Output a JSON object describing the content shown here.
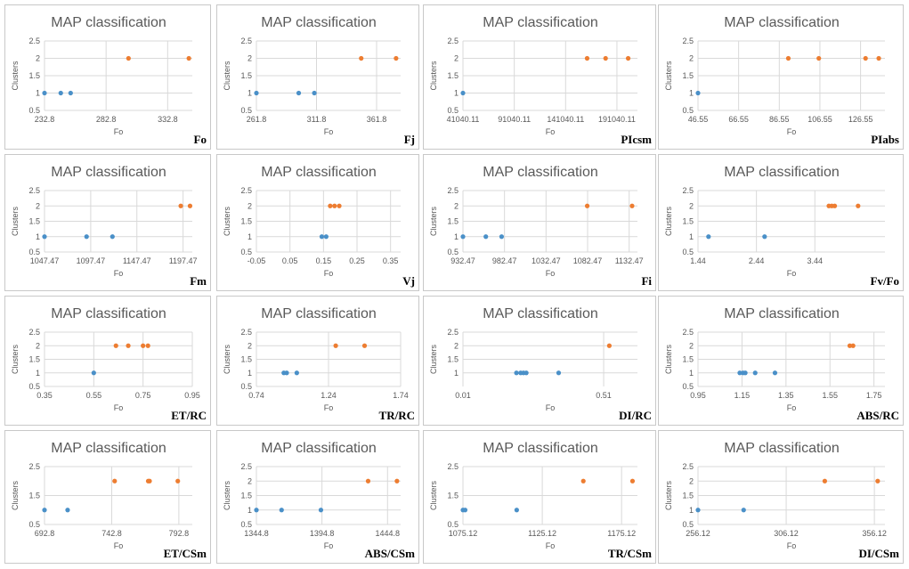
{
  "colors": {
    "cluster1": "#4a90c8",
    "cluster2": "#ed7d31",
    "grid": "#d9d9d9",
    "axis": "#595959"
  },
  "chart_data": [
    {
      "type": "scatter",
      "title": "MAP classification",
      "tag": "Fo",
      "xlabel": "Fo",
      "ylabel": "Clusters",
      "xticks": [
        "232.8",
        "282.8",
        "332.8"
      ],
      "xlim": [
        232.8,
        352.8
      ],
      "ylim": [
        0.5,
        2.5
      ],
      "yticks": [
        "0.5",
        "1",
        "1.5",
        "2",
        "2.5"
      ],
      "points": [
        {
          "x": 232.8,
          "y": 1,
          "c": 1
        },
        {
          "x": 246,
          "y": 1,
          "c": 1
        },
        {
          "x": 254,
          "y": 1,
          "c": 1
        },
        {
          "x": 301,
          "y": 2,
          "c": 2
        },
        {
          "x": 350,
          "y": 2,
          "c": 2
        }
      ]
    },
    {
      "type": "scatter",
      "title": "MAP classification",
      "tag": "Fj",
      "xlabel": "Fo",
      "ylabel": "Clusters",
      "xticks": [
        "261.8",
        "311.8",
        "361.8"
      ],
      "xlim": [
        261.8,
        381.8
      ],
      "ylim": [
        0.5,
        2.5
      ],
      "yticks": [
        "0.5",
        "1",
        "1.5",
        "2",
        "2.5"
      ],
      "points": [
        {
          "x": 261.8,
          "y": 1,
          "c": 1
        },
        {
          "x": 297,
          "y": 1,
          "c": 1
        },
        {
          "x": 310,
          "y": 1,
          "c": 1
        },
        {
          "x": 349,
          "y": 2,
          "c": 2
        },
        {
          "x": 378,
          "y": 2,
          "c": 2
        }
      ]
    },
    {
      "type": "scatter",
      "title": "MAP classification",
      "tag": "PIcsm",
      "xlabel": "Fo",
      "ylabel": "Clusters",
      "xticks": [
        "41040.11",
        "91040.11",
        "141040.11",
        "191040.11"
      ],
      "xlim": [
        41040.11,
        211040.11
      ],
      "ylim": [
        0.5,
        2.5
      ],
      "yticks": [
        "0.5",
        "1",
        "1.5",
        "2",
        "2.5"
      ],
      "points": [
        {
          "x": 41040,
          "y": 1,
          "c": 1
        },
        {
          "x": 162000,
          "y": 2,
          "c": 2
        },
        {
          "x": 180000,
          "y": 2,
          "c": 2
        },
        {
          "x": 202000,
          "y": 2,
          "c": 2
        }
      ]
    },
    {
      "type": "scatter",
      "title": "MAP classification",
      "tag": "PIabs",
      "xlabel": "Fo",
      "ylabel": "Clusters",
      "xticks": [
        "46.55",
        "66.55",
        "86.55",
        "106.55",
        "126.55"
      ],
      "xlim": [
        46.55,
        138.55
      ],
      "ylim": [
        0.5,
        2.5
      ],
      "yticks": [
        "0.5",
        "1",
        "1.5",
        "2",
        "2.5"
      ],
      "points": [
        {
          "x": 46.55,
          "y": 1,
          "c": 1
        },
        {
          "x": 91,
          "y": 2,
          "c": 2
        },
        {
          "x": 106,
          "y": 2,
          "c": 2
        },
        {
          "x": 129,
          "y": 2,
          "c": 2
        },
        {
          "x": 135.5,
          "y": 2,
          "c": 2
        }
      ]
    },
    {
      "type": "scatter",
      "title": "MAP classification",
      "tag": "Fm",
      "xlabel": "Fo",
      "ylabel": "Clusters",
      "xticks": [
        "1047.47",
        "1097.47",
        "1147.47",
        "1197.47"
      ],
      "xlim": [
        1047.47,
        1207.47
      ],
      "ylim": [
        0.5,
        2.5
      ],
      "yticks": [
        "0.5",
        "1",
        "1.5",
        "2",
        "2.5"
      ],
      "points": [
        {
          "x": 1047.47,
          "y": 1,
          "c": 1
        },
        {
          "x": 1093,
          "y": 1,
          "c": 1
        },
        {
          "x": 1121,
          "y": 1,
          "c": 1
        },
        {
          "x": 1195,
          "y": 2,
          "c": 2
        },
        {
          "x": 1205,
          "y": 2,
          "c": 2
        }
      ]
    },
    {
      "type": "scatter",
      "title": "MAP classification",
      "tag": "Vj",
      "xlabel": "Fo",
      "ylabel": "Clusters",
      "xticks": [
        "-0.05",
        "0.05",
        "0.15",
        "0.25",
        "0.35"
      ],
      "xlim": [
        -0.05,
        0.38
      ],
      "ylim": [
        0.5,
        2.5
      ],
      "yticks": [
        "0.5",
        "1",
        "1.5",
        "2",
        "2.5"
      ],
      "points": [
        {
          "x": 0.145,
          "y": 1,
          "c": 1
        },
        {
          "x": 0.158,
          "y": 1,
          "c": 1
        },
        {
          "x": 0.17,
          "y": 2,
          "c": 2
        },
        {
          "x": 0.183,
          "y": 2,
          "c": 2
        },
        {
          "x": 0.197,
          "y": 2,
          "c": 2
        }
      ]
    },
    {
      "type": "scatter",
      "title": "MAP classification",
      "tag": "Fi",
      "xlabel": "Fo",
      "ylabel": "Clusters",
      "xticks": [
        "932.47",
        "982.47",
        "1032.47",
        "1082.47",
        "1132.47"
      ],
      "xlim": [
        932.47,
        1142.47
      ],
      "ylim": [
        0.5,
        2.5
      ],
      "yticks": [
        "0.5",
        "1",
        "1.5",
        "2",
        "2.5"
      ],
      "points": [
        {
          "x": 932.47,
          "y": 1,
          "c": 1
        },
        {
          "x": 960,
          "y": 1,
          "c": 1
        },
        {
          "x": 979,
          "y": 1,
          "c": 1
        },
        {
          "x": 1082,
          "y": 2,
          "c": 2
        },
        {
          "x": 1136,
          "y": 2,
          "c": 2
        }
      ]
    },
    {
      "type": "scatter",
      "title": "MAP classification",
      "tag": "Fv/Fo",
      "xlabel": "Fo",
      "ylabel": "Clusters",
      "xticks": [
        "1.44",
        "2.44",
        "3.44"
      ],
      "xlim": [
        1.44,
        4.64
      ],
      "ylim": [
        0.5,
        2.5
      ],
      "yticks": [
        "0.5",
        "1",
        "1.5",
        "2",
        "2.5"
      ],
      "points": [
        {
          "x": 1.62,
          "y": 1,
          "c": 1
        },
        {
          "x": 2.58,
          "y": 1,
          "c": 1
        },
        {
          "x": 3.68,
          "y": 2,
          "c": 2
        },
        {
          "x": 3.73,
          "y": 2,
          "c": 2
        },
        {
          "x": 3.78,
          "y": 2,
          "c": 2
        },
        {
          "x": 4.18,
          "y": 2,
          "c": 2
        }
      ]
    },
    {
      "type": "scatter",
      "title": "MAP classification",
      "tag": "ET/RC",
      "xlabel": "Fo",
      "ylabel": "Clusters",
      "xticks": [
        "0.35",
        "0.55",
        "0.75",
        "0.95"
      ],
      "xlim": [
        0.35,
        0.95
      ],
      "ylim": [
        0.5,
        2.5
      ],
      "yticks": [
        "0.5",
        "1",
        "1.5",
        "2",
        "2.5"
      ],
      "points": [
        {
          "x": 0.55,
          "y": 1,
          "c": 1
        },
        {
          "x": 0.64,
          "y": 2,
          "c": 2
        },
        {
          "x": 0.69,
          "y": 2,
          "c": 2
        },
        {
          "x": 0.75,
          "y": 2,
          "c": 2
        },
        {
          "x": 0.77,
          "y": 2,
          "c": 2
        }
      ]
    },
    {
      "type": "scatter",
      "title": "MAP classification",
      "tag": "TR/RC",
      "xlabel": "Fo",
      "ylabel": "Clusters",
      "xticks": [
        "0.74",
        "1.24",
        "1.74"
      ],
      "xlim": [
        0.74,
        1.74
      ],
      "ylim": [
        0.5,
        2.5
      ],
      "yticks": [
        "0.5",
        "1",
        "1.5",
        "2",
        "2.5"
      ],
      "points": [
        {
          "x": 0.93,
          "y": 1,
          "c": 1
        },
        {
          "x": 0.95,
          "y": 1,
          "c": 1
        },
        {
          "x": 1.02,
          "y": 1,
          "c": 1
        },
        {
          "x": 1.29,
          "y": 2,
          "c": 2
        },
        {
          "x": 1.49,
          "y": 2,
          "c": 2
        }
      ]
    },
    {
      "type": "scatter",
      "title": "MAP classification",
      "tag": "DI/RC",
      "xlabel": "Fo",
      "ylabel": "Clusters",
      "xticks": [
        "0.01",
        "0.51"
      ],
      "xlim": [
        0.01,
        0.63
      ],
      "ylim": [
        0.5,
        2.5
      ],
      "yticks": [
        "1",
        "1.5",
        "2",
        "2.5"
      ],
      "points": [
        {
          "x": 0.2,
          "y": 1,
          "c": 1
        },
        {
          "x": 0.215,
          "y": 1,
          "c": 1
        },
        {
          "x": 0.225,
          "y": 1,
          "c": 1
        },
        {
          "x": 0.235,
          "y": 1,
          "c": 1
        },
        {
          "x": 0.35,
          "y": 1,
          "c": 1
        },
        {
          "x": 0.53,
          "y": 2,
          "c": 2
        }
      ]
    },
    {
      "type": "scatter",
      "title": "MAP classification",
      "tag": "ABS/RC",
      "xlabel": "Fo",
      "ylabel": "Clusters",
      "xticks": [
        "0.95",
        "1.15",
        "1.35",
        "1.55",
        "1.75"
      ],
      "xlim": [
        0.95,
        1.8
      ],
      "ylim": [
        0.5,
        2.5
      ],
      "yticks": [
        "0.5",
        "1",
        "1.5",
        "2",
        "2.5"
      ],
      "points": [
        {
          "x": 1.14,
          "y": 1,
          "c": 1
        },
        {
          "x": 1.155,
          "y": 1,
          "c": 1
        },
        {
          "x": 1.165,
          "y": 1,
          "c": 1
        },
        {
          "x": 1.21,
          "y": 1,
          "c": 1
        },
        {
          "x": 1.3,
          "y": 1,
          "c": 1
        },
        {
          "x": 1.64,
          "y": 2,
          "c": 2
        },
        {
          "x": 1.655,
          "y": 2,
          "c": 2
        }
      ]
    },
    {
      "type": "scatter",
      "title": "MAP classification",
      "tag": "ET/CSm",
      "xlabel": "Fo",
      "ylabel": "Clusters",
      "xticks": [
        "692.8",
        "742.8",
        "792.8"
      ],
      "xlim": [
        692.8,
        802.8
      ],
      "ylim": [
        0.5,
        2.5
      ],
      "yticks": [
        "0.5",
        "1.5",
        "2.5"
      ],
      "points": [
        {
          "x": 692.8,
          "y": 1,
          "c": 1
        },
        {
          "x": 710,
          "y": 1,
          "c": 1
        },
        {
          "x": 745,
          "y": 2,
          "c": 2
        },
        {
          "x": 770,
          "y": 2,
          "c": 2
        },
        {
          "x": 771,
          "y": 2,
          "c": 2
        },
        {
          "x": 792,
          "y": 2,
          "c": 2
        }
      ]
    },
    {
      "type": "scatter",
      "title": "MAP classification",
      "tag": "ABS/CSm",
      "xlabel": "Fo",
      "ylabel": "Clusters",
      "xticks": [
        "1344.8",
        "1394.8",
        "1444.8"
      ],
      "xlim": [
        1344.8,
        1454.8
      ],
      "ylim": [
        0.5,
        2.5
      ],
      "yticks": [
        "0.5",
        "1",
        "1.5",
        "2",
        "2.5"
      ],
      "points": [
        {
          "x": 1344.8,
          "y": 1,
          "c": 1
        },
        {
          "x": 1364,
          "y": 1,
          "c": 1
        },
        {
          "x": 1394,
          "y": 1,
          "c": 1
        },
        {
          "x": 1430,
          "y": 2,
          "c": 2
        },
        {
          "x": 1452,
          "y": 2,
          "c": 2
        }
      ]
    },
    {
      "type": "scatter",
      "title": "MAP classification",
      "tag": "TR/CSm",
      "xlabel": "Fo",
      "ylabel": "Clusters",
      "xticks": [
        "1075.12",
        "1125.12",
        "1175.12"
      ],
      "xlim": [
        1075.12,
        1185.12
      ],
      "ylim": [
        0.5,
        2.5
      ],
      "yticks": [
        "0.5",
        "1.5",
        "2.5"
      ],
      "points": [
        {
          "x": 1075.12,
          "y": 1,
          "c": 1
        },
        {
          "x": 1076.5,
          "y": 1,
          "c": 1
        },
        {
          "x": 1109,
          "y": 1,
          "c": 1
        },
        {
          "x": 1151,
          "y": 2,
          "c": 2
        },
        {
          "x": 1182,
          "y": 2,
          "c": 2
        }
      ]
    },
    {
      "type": "scatter",
      "title": "MAP classification",
      "tag": "DI/CSm",
      "xlabel": "Fo",
      "ylabel": "Clusters",
      "xticks": [
        "256.12",
        "306.12",
        "356.12"
      ],
      "xlim": [
        256.12,
        362.12
      ],
      "ylim": [
        0.5,
        2.5
      ],
      "yticks": [
        "0.5",
        "1",
        "1.5",
        "2",
        "2.5"
      ],
      "points": [
        {
          "x": 256.12,
          "y": 1,
          "c": 1
        },
        {
          "x": 282,
          "y": 1,
          "c": 1
        },
        {
          "x": 328,
          "y": 2,
          "c": 2
        },
        {
          "x": 358,
          "y": 2,
          "c": 2
        }
      ]
    }
  ]
}
